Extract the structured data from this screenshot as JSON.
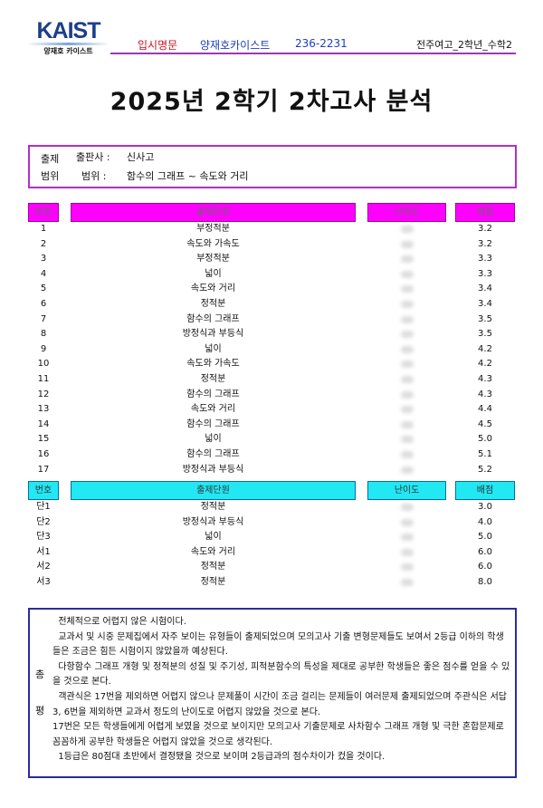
{
  "header": {
    "logo": "KAIST",
    "logo_sub": "양재호 카이스트",
    "brand_red": "입시명문",
    "brand_blue": "양재호카이스트",
    "phone": "236-2231",
    "doc_label": "전주여고_2학년_수학2"
  },
  "title": "2025년 2학기 2차고사 분석",
  "info": {
    "label1": "출제",
    "label2": "범위",
    "publisher_label": "출판사 :",
    "publisher": "신사고",
    "range_label": "범위 :",
    "range": "함수의 그래프 ~ 속도와 거리"
  },
  "table1": {
    "headers": [
      "번호",
      "출제단원",
      "난이도",
      "배점"
    ],
    "header_color": "#ff00ff",
    "rows": [
      [
        "1",
        "부정적분",
        "3.2"
      ],
      [
        "2",
        "속도와 가속도",
        "3.2"
      ],
      [
        "3",
        "부정적분",
        "3.3"
      ],
      [
        "4",
        "넓이",
        "3.3"
      ],
      [
        "5",
        "속도와 거리",
        "3.4"
      ],
      [
        "6",
        "정적분",
        "3.4"
      ],
      [
        "7",
        "함수의 그래프",
        "3.5"
      ],
      [
        "8",
        "방정식과 부등식",
        "3.5"
      ],
      [
        "9",
        "넓이",
        "4.2"
      ],
      [
        "10",
        "속도와 가속도",
        "4.2"
      ],
      [
        "11",
        "정적분",
        "4.3"
      ],
      [
        "12",
        "함수의 그래프",
        "4.3"
      ],
      [
        "13",
        "속도와 거리",
        "4.4"
      ],
      [
        "14",
        "함수의 그래프",
        "4.5"
      ],
      [
        "15",
        "넓이",
        "5.0"
      ],
      [
        "16",
        "함수의 그래프",
        "5.1"
      ],
      [
        "17",
        "방정식과 부등식",
        "5.2"
      ]
    ]
  },
  "table2": {
    "headers": [
      "번호",
      "출제단원",
      "난이도",
      "배점"
    ],
    "header_color": "#22e8f4",
    "rows": [
      [
        "단1",
        "정적분",
        "3.0"
      ],
      [
        "단2",
        "방정식과 부등식",
        "4.0"
      ],
      [
        "단3",
        "넓이",
        "5.0"
      ],
      [
        "서1",
        "속도와 거리",
        "6.0"
      ],
      [
        "서2",
        "정적분",
        "6.0"
      ],
      [
        "서3",
        "정적분",
        "8.0"
      ]
    ]
  },
  "review": {
    "label1": "총",
    "label2": "평",
    "paragraphs": [
      "  전체적으로 어렵지 않은 시험이다.",
      "  교과서 및 시중 문제집에서 자주 보이는 유형들이 출제되었으며 모의고사 기출 변형문제들도 보여서 2등급 이하의 학생들은 조금은 힘든 시험이지 않았을까 예상된다.",
      "  다항함수 그래프 개형 및 정적분의 성질 및 주기성, 피적분함수의 특성을 제대로 공부한 학생들은 좋은 점수를 얻을 수 있을 것으로 본다.",
      "  객관식은 17번을 제외하면 어렵지 않으나 문제풀이 시간이 조금 걸리는 문제들이 여러문제 출제되었으며 주관식은 서답 3, 6번을 제외하면 교과서 정도의 난이도로 어렵지 않았을 것으로 본다.",
      "17번은 모든 학생들에게 어렵게 보였을 것으로 보이지만 모의고사 기출문제로 사차함수 그래프 개형 및 극한 혼합문제로 꼼꼼하게 공부한 학생들은 어렵지 않았을 것으로 생각된다.",
      "  1등급은 80점대 초반에서 결정됐을 것으로 보이며 2등급과의 점수차이가 컸을 것이다."
    ]
  }
}
